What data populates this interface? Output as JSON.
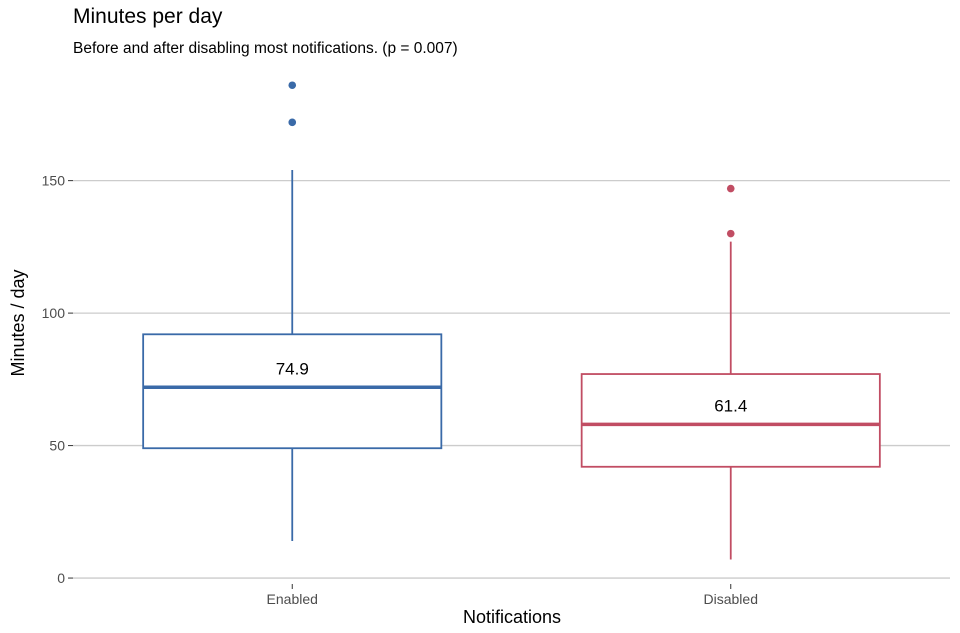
{
  "chart_data": {
    "type": "box",
    "title": "Minutes per day",
    "subtitle": "Before and after disabling most notifications. (p = 0.007)",
    "xlabel": "Notifications",
    "ylabel": "Minutes / day",
    "categories": [
      "Enabled",
      "Disabled"
    ],
    "ylim": [
      -3,
      191
    ],
    "yticks": [
      0,
      50,
      100,
      150
    ],
    "grid": "horizontal-major",
    "legend": "none",
    "boxes": [
      {
        "category": "Enabled",
        "color": "#3a6aa8",
        "whisker_low": 14,
        "q1": 49,
        "median": 72,
        "q3": 92,
        "whisker_high": 154,
        "outliers": [
          172,
          186
        ],
        "mean_label": "74.9"
      },
      {
        "category": "Disabled",
        "color": "#c14d63",
        "whisker_low": 7,
        "q1": 42,
        "median": 58,
        "q3": 77,
        "whisker_high": 127,
        "outliers": [
          130,
          147
        ],
        "mean_label": "61.4"
      }
    ]
  }
}
